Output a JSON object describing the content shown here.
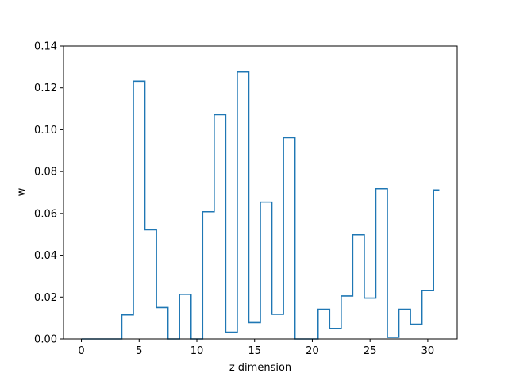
{
  "chart_data": {
    "type": "line",
    "drawstyle": "steps-mid",
    "title": "",
    "xlabel": "z dimension",
    "ylabel": "w",
    "xlim": [
      -1.55,
      32.55
    ],
    "ylim": [
      0,
      0.14
    ],
    "xticks": [
      0,
      5,
      10,
      15,
      20,
      25,
      30
    ],
    "yticks": [
      0.0,
      0.02,
      0.04,
      0.06,
      0.08,
      0.1,
      0.12,
      0.14
    ],
    "ytick_labels": [
      "0.00",
      "0.02",
      "0.04",
      "0.06",
      "0.08",
      "0.10",
      "0.12",
      "0.14"
    ],
    "grid": false,
    "series": [
      {
        "color": "#1f77b4",
        "x": [
          0,
          1,
          2,
          3,
          4,
          5,
          6,
          7,
          8,
          9,
          10,
          11,
          12,
          13,
          14,
          15,
          16,
          17,
          18,
          19,
          20,
          21,
          22,
          23,
          24,
          25,
          26,
          27,
          28,
          29,
          30,
          31
        ],
        "values": [
          0.0,
          0.0,
          0.0,
          0.0,
          0.0115,
          0.1232,
          0.0522,
          0.015,
          0.0,
          0.0213,
          0.0,
          0.0608,
          0.1072,
          0.0032,
          0.1276,
          0.0078,
          0.0654,
          0.0118,
          0.0962,
          0.0,
          0.0,
          0.0142,
          0.005,
          0.0205,
          0.0498,
          0.0195,
          0.0718,
          0.0008,
          0.0142,
          0.007,
          0.0232,
          0.0712
        ]
      }
    ]
  }
}
